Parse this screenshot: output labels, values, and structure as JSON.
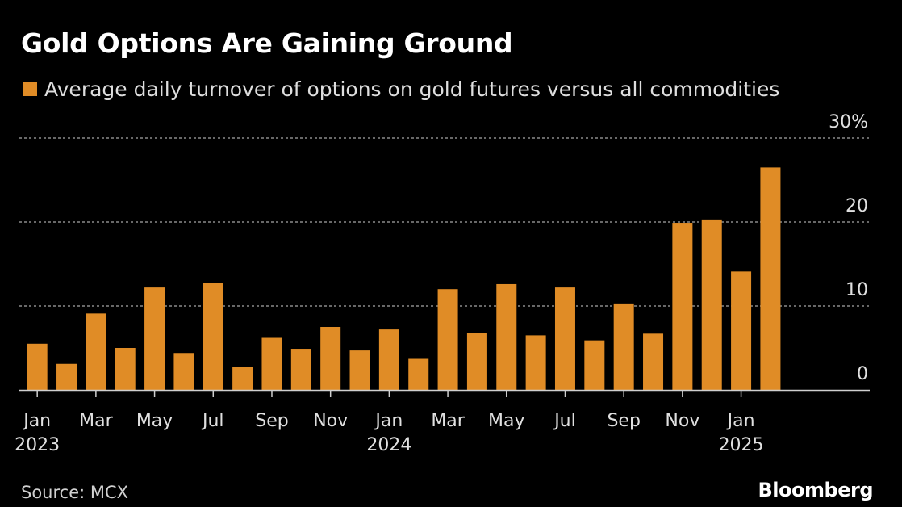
{
  "colors": {
    "bar": "#E08C26",
    "background": "#000000",
    "grid": "#8a8a8a",
    "axis": "#cfcfcf",
    "text": "#e0e0e0"
  },
  "header": {
    "title": "Gold Options Are Gaining Ground",
    "legend_label": "Average daily turnover of options on gold futures versus all commodities"
  },
  "footer": {
    "source": "Source: MCX",
    "brand": "Bloomberg"
  },
  "chart_data": {
    "type": "bar",
    "title": "Gold Options Are Gaining Ground",
    "series": [
      {
        "name": "Average daily turnover of options on gold futures versus all commodities",
        "categories": [
          "Jan 2023",
          "Feb 2023",
          "Mar 2023",
          "Apr 2023",
          "May 2023",
          "Jun 2023",
          "Jul 2023",
          "Aug 2023",
          "Sep 2023",
          "Oct 2023",
          "Nov 2023",
          "Dec 2023",
          "Jan 2024",
          "Feb 2024",
          "Mar 2024",
          "Apr 2024",
          "May 2024",
          "Jun 2024",
          "Jul 2024",
          "Aug 2024",
          "Sep 2024",
          "Oct 2024",
          "Nov 2024",
          "Dec 2024",
          "Jan 2025",
          "Feb 2025"
        ],
        "values": [
          5.5,
          3.1,
          9.1,
          5.0,
          12.2,
          4.4,
          12.7,
          2.7,
          6.2,
          4.9,
          7.5,
          4.7,
          7.2,
          3.7,
          12.0,
          6.8,
          12.6,
          6.5,
          12.2,
          5.9,
          10.3,
          6.7,
          19.9,
          20.3,
          14.1,
          26.5
        ]
      }
    ],
    "y_axis": {
      "min": 0,
      "max": 30,
      "ticks": [
        0,
        10,
        20,
        30
      ],
      "tick_labels": [
        "0",
        "10",
        "20",
        "30%"
      ],
      "position": "right",
      "grid": true
    },
    "x_axis": {
      "ticks": [
        {
          "index": 0,
          "month": "Jan",
          "year": "2023"
        },
        {
          "index": 2,
          "month": "Mar",
          "year": ""
        },
        {
          "index": 4,
          "month": "May",
          "year": ""
        },
        {
          "index": 6,
          "month": "Jul",
          "year": ""
        },
        {
          "index": 8,
          "month": "Sep",
          "year": ""
        },
        {
          "index": 10,
          "month": "Nov",
          "year": ""
        },
        {
          "index": 12,
          "month": "Jan",
          "year": "2024"
        },
        {
          "index": 14,
          "month": "Mar",
          "year": ""
        },
        {
          "index": 16,
          "month": "May",
          "year": ""
        },
        {
          "index": 18,
          "month": "Jul",
          "year": ""
        },
        {
          "index": 20,
          "month": "Sep",
          "year": ""
        },
        {
          "index": 22,
          "month": "Nov",
          "year": ""
        },
        {
          "index": 24,
          "month": "Jan",
          "year": "2025"
        }
      ]
    }
  }
}
